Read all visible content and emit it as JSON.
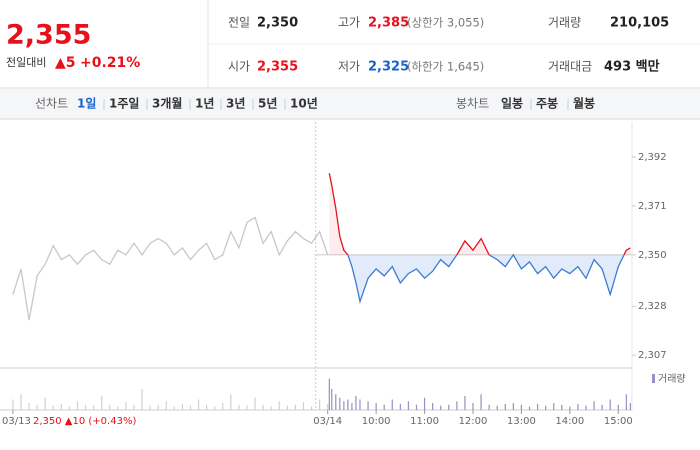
{
  "header": {
    "price": "2,355",
    "change_label": "전일대비",
    "change": "▲5",
    "change_rate": "+0.21%",
    "stats": [
      {
        "label": "전일",
        "value": "2,350",
        "color": "#222"
      },
      {
        "label": "고가",
        "value": "2,385",
        "note": "(상한가 3,055)",
        "color": "#e8101a"
      },
      {
        "label": "거래량",
        "value": "210,105",
        "color": "#222"
      },
      {
        "label": "시가",
        "value": "2,355",
        "color": "#e8101a"
      },
      {
        "label": "저가",
        "value": "2,325",
        "note": "(하한가 1,645)",
        "color": "#1a63c9"
      },
      {
        "label": "거래대금",
        "value": "493 백만",
        "color": "#222"
      }
    ]
  },
  "tabs": {
    "line_label": "선차트",
    "line_items": [
      "1일",
      "1주일",
      "3개월",
      "1년",
      "3년",
      "5년",
      "10년"
    ],
    "candle_label": "봉차트",
    "candle_items": [
      "일봉",
      "주봉",
      "월봉"
    ]
  },
  "chart_data": {
    "type": "line",
    "day_summary": "2,350 ▲10 (+0.43%)",
    "baseline": 2350,
    "xlim": [
      -16,
      767
    ],
    "xticks": [
      {
        "value": 0,
        "label": "03/13"
      },
      {
        "value": 390,
        "label": "03/14"
      },
      {
        "value": 450,
        "label": "10:00"
      },
      {
        "value": 510,
        "label": "11:00"
      },
      {
        "value": 570,
        "label": "12:00"
      },
      {
        "value": 630,
        "label": "13:00"
      },
      {
        "value": 690,
        "label": "14:00"
      },
      {
        "value": 750,
        "label": "15:00"
      }
    ],
    "ylim": [
      2301.5,
      2407
    ],
    "yticks": [
      {
        "value": 2392,
        "label": "2,392"
      },
      {
        "value": 2371,
        "label": "2,371"
      },
      {
        "value": 2350,
        "label": "2,350"
      },
      {
        "value": 2328,
        "label": "2,328"
      },
      {
        "value": 2307,
        "label": "2,307"
      }
    ],
    "y2lim": [
      0,
      20000
    ],
    "grid": false,
    "series": [
      {
        "color": "#c8c8c8",
        "x": [
          0,
          10,
          20,
          30,
          40,
          50,
          60,
          70,
          80,
          90,
          100,
          110,
          120,
          130,
          140,
          150,
          160,
          170,
          180,
          190,
          200,
          210,
          220,
          230,
          240,
          250,
          260,
          270,
          280,
          290,
          300,
          310,
          320,
          330,
          340,
          350,
          360,
          370,
          380,
          390
        ],
        "values": [
          2333,
          2344,
          2322,
          2341,
          2346,
          2354,
          2348,
          2350,
          2346,
          2350,
          2352,
          2348,
          2346,
          2352,
          2350,
          2355,
          2350,
          2355,
          2357,
          2355,
          2350,
          2353,
          2348,
          2352,
          2355,
          2348,
          2350,
          2360,
          2353,
          2364,
          2366,
          2355,
          2360,
          2350,
          2356,
          2360,
          2357,
          2355,
          2360,
          2350
        ]
      },
      {
        "color": "#e8101a",
        "down_color": "#3b7bd6",
        "x": [
          392,
          395,
          400,
          405,
          410,
          415,
          420,
          425,
          430,
          440,
          450,
          460,
          470,
          480,
          490,
          500,
          510,
          520,
          530,
          540,
          550,
          560,
          570,
          580,
          590,
          600,
          610,
          620,
          630,
          640,
          650,
          660,
          670,
          680,
          690,
          700,
          710,
          720,
          730,
          740,
          750,
          760,
          765
        ],
        "values": [
          2385,
          2380,
          2370,
          2358,
          2352,
          2350,
          2345,
          2338,
          2330,
          2340,
          2344,
          2341,
          2345,
          2338,
          2342,
          2344,
          2340,
          2343,
          2348,
          2345,
          2350,
          2356,
          2352,
          2357,
          2350,
          2348,
          2345,
          2350,
          2344,
          2347,
          2342,
          2345,
          2340,
          2344,
          2342,
          2345,
          2340,
          2348,
          2344,
          2333,
          2345,
          2352,
          2353
        ]
      },
      {
        "color": "#d0d0d0",
        "axis": "y2",
        "x": [
          0,
          10,
          20,
          30,
          40,
          50,
          60,
          70,
          80,
          90,
          100,
          110,
          120,
          130,
          140,
          150,
          160,
          170,
          180,
          190,
          200,
          210,
          220,
          230,
          240,
          250,
          260,
          270,
          280,
          290,
          300,
          310,
          320,
          330,
          340,
          350,
          360,
          370,
          380,
          390
        ],
        "values": [
          6000,
          9000,
          4000,
          3000,
          7000,
          2500,
          3500,
          2000,
          5000,
          3000,
          2500,
          8000,
          3000,
          2000,
          4500,
          3000,
          12000,
          2500,
          3000,
          5000,
          2000,
          3500,
          2500,
          6000,
          3000,
          2000,
          4000,
          9000,
          3000,
          2500,
          7000,
          3000,
          2000,
          5000,
          2500,
          3000,
          4500,
          2000,
          6000,
          3500
        ]
      },
      {
        "name": "거래량",
        "color": "#9b8ec4",
        "axis": "y2",
        "x": [
          392,
          395,
          400,
          405,
          410,
          415,
          420,
          425,
          430,
          440,
          450,
          460,
          470,
          480,
          490,
          500,
          510,
          520,
          530,
          540,
          550,
          560,
          570,
          580,
          590,
          600,
          610,
          620,
          630,
          640,
          650,
          660,
          670,
          680,
          690,
          700,
          710,
          720,
          730,
          740,
          750,
          760,
          765
        ],
        "values": [
          18000,
          12000,
          9000,
          7000,
          5000,
          6000,
          4000,
          8000,
          6000,
          5000,
          4000,
          3000,
          6000,
          3500,
          5000,
          3000,
          7000,
          4000,
          2500,
          3000,
          5000,
          8000,
          4000,
          9000,
          3000,
          2500,
          3500,
          4000,
          3000,
          2000,
          3500,
          2500,
          4000,
          3000,
          2000,
          3500,
          2500,
          5000,
          3000,
          6000,
          3000,
          9000,
          4000
        ]
      }
    ]
  }
}
